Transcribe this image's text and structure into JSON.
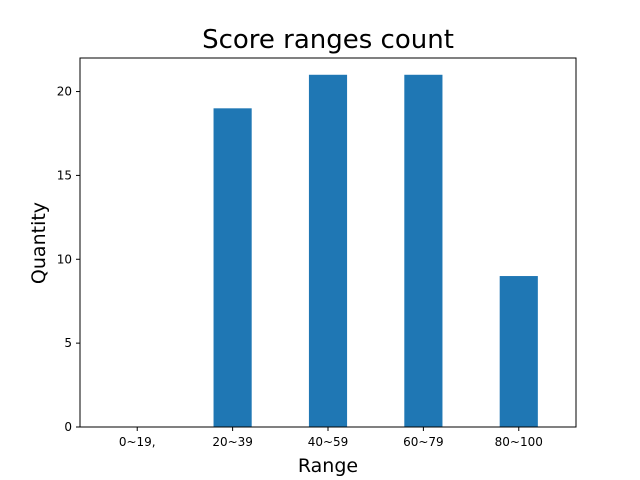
{
  "chart_data": {
    "type": "bar",
    "title": "Score ranges count",
    "xlabel": "Range",
    "ylabel": "Quantity",
    "categories": [
      "0~19,",
      "20~39",
      "40~59",
      "60~79",
      "80~100"
    ],
    "values": [
      0,
      19,
      21,
      21,
      9
    ],
    "ylim": [
      0,
      22
    ],
    "yticks": [
      0,
      5,
      10,
      15,
      20
    ],
    "bar_color": "#1f77b4",
    "grid": false,
    "legend": "none"
  }
}
